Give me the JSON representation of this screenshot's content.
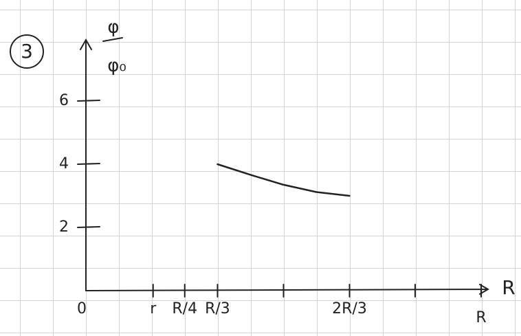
{
  "chart_data": {
    "type": "line",
    "panel_label": "3",
    "y_label_numerator": "φ",
    "y_label_denominator": "φ₀",
    "x_label": "R",
    "x": [
      0.333,
      0.42,
      0.5,
      0.583,
      0.667
    ],
    "series": [
      {
        "color": "#222222",
        "values": [
          4.0,
          3.65,
          3.35,
          3.12,
          3.0
        ]
      }
    ],
    "xlim": [
      0,
      1.05
    ],
    "ylim": [
      0,
      7.9
    ],
    "xticks": [
      0,
      {
        "value": 0.17,
        "label": "r"
      },
      {
        "value": 0.25,
        "label": "R/4"
      },
      {
        "value": 0.333,
        "label": "R/3"
      },
      {
        "value": 0.5,
        "label": null
      },
      {
        "value": 0.667,
        "label": "2R/3"
      },
      {
        "value": 0.833,
        "label": null
      },
      {
        "value": 1,
        "label": "R"
      }
    ],
    "yticks": [
      2,
      4,
      6
    ]
  }
}
